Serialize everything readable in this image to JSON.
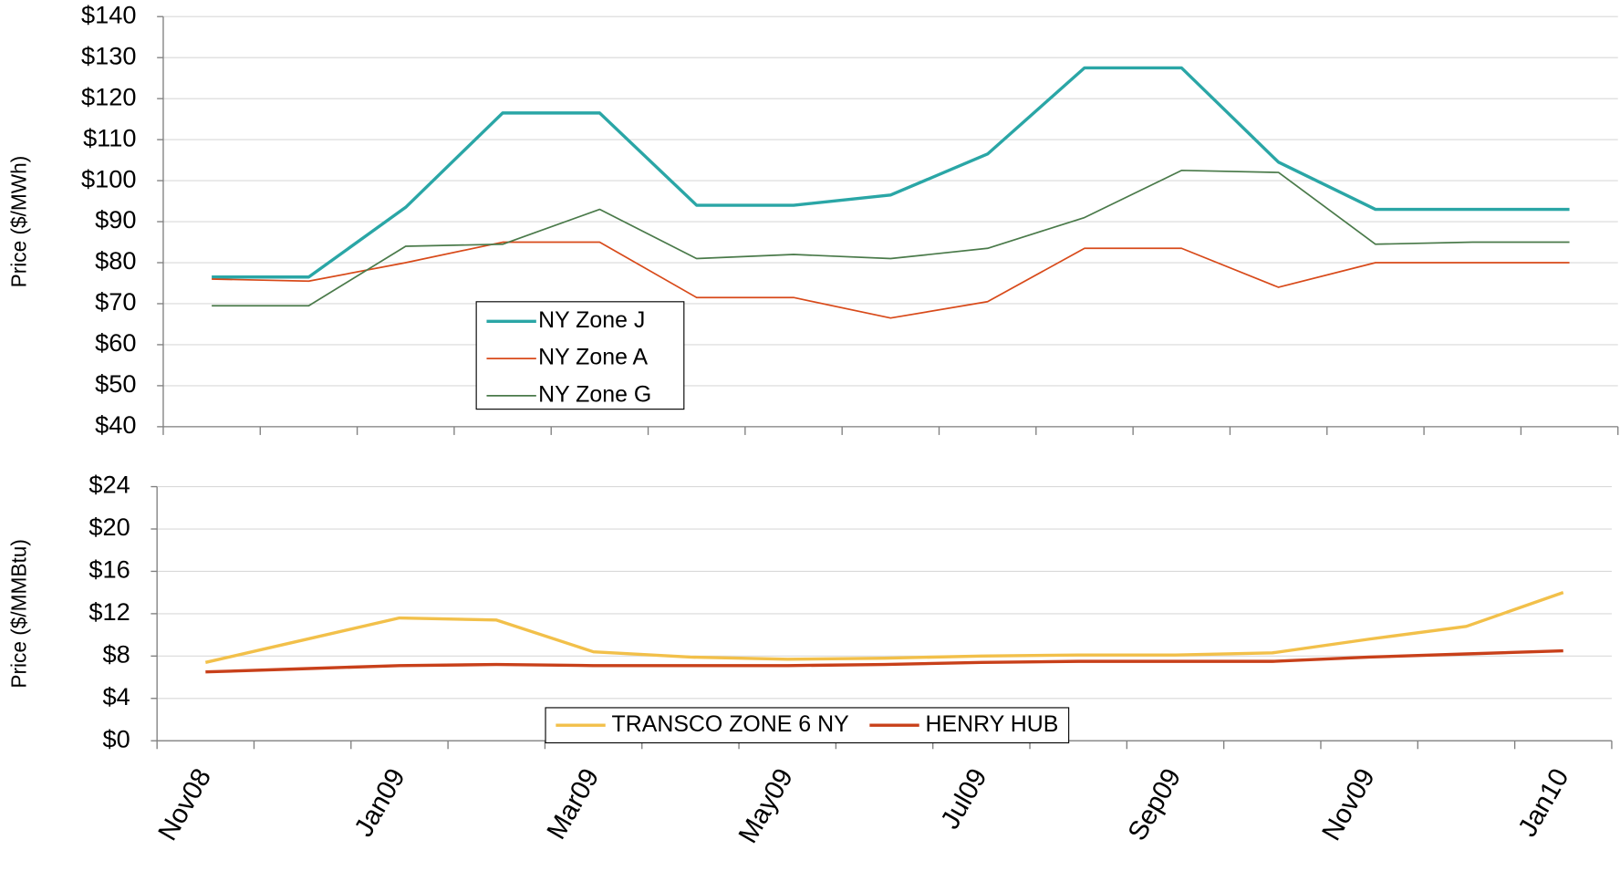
{
  "chart_data": [
    {
      "type": "line",
      "ylabel": "Price ($/MWh)",
      "categories": [
        null,
        null,
        null,
        null,
        null,
        null,
        null,
        null,
        null,
        null,
        null,
        null,
        null,
        null,
        null
      ],
      "series": [
        {
          "name": "NY Zone J",
          "color": "#2aa6a6",
          "linewidth": 3,
          "values": [
            76.5,
            76.5,
            93.5,
            116.5,
            116.5,
            94,
            94,
            96.5,
            106.5,
            127.5,
            127.5,
            104.5,
            93,
            93,
            93
          ]
        },
        {
          "name": "NY Zone A",
          "color": "#d84a1a",
          "linewidth": 1.5,
          "values": [
            76,
            75.5,
            80,
            85,
            85,
            71.5,
            71.5,
            66.5,
            70.5,
            83.5,
            83.5,
            74,
            80,
            80,
            80
          ]
        },
        {
          "name": "NY Zone G",
          "color": "#4a7a4a",
          "linewidth": 1.5,
          "values": [
            69.5,
            69.5,
            84,
            84.5,
            93,
            81,
            82,
            81,
            83.5,
            91,
            102.5,
            102,
            84.5,
            85,
            85
          ]
        }
      ],
      "ylim": [
        40,
        140
      ],
      "yticks": [
        {
          "value": 40,
          "label": "$40"
        },
        {
          "value": 50,
          "label": "$50"
        },
        {
          "value": 60,
          "label": "$60"
        },
        {
          "value": 70,
          "label": "$70"
        },
        {
          "value": 80,
          "label": "$80"
        },
        {
          "value": 90,
          "label": "$90"
        },
        {
          "value": 100,
          "label": "$100"
        },
        {
          "value": 110,
          "label": "$110"
        },
        {
          "value": 120,
          "label": "$120"
        },
        {
          "value": 130,
          "label": "$130"
        },
        {
          "value": 140,
          "label": "$140"
        }
      ],
      "grid": true,
      "legend": "center left"
    },
    {
      "type": "line",
      "ylabel": "Price ($/MMBtu)",
      "categories": [
        "Nov08",
        null,
        "Jan09",
        null,
        "Mar09",
        null,
        "May09",
        null,
        "Jul09",
        null,
        "Sep09",
        null,
        "Nov09",
        null,
        "Jan10"
      ],
      "series": [
        {
          "name": "TRANSCO ZONE 6 NY",
          "color": "#f2c04a",
          "linewidth": 3,
          "values": [
            7.4,
            9.5,
            11.6,
            11.4,
            8.4,
            7.9,
            7.7,
            7.8,
            8.0,
            8.1,
            8.1,
            8.3,
            9.6,
            10.8,
            14.0
          ]
        },
        {
          "name": "HENRY HUB",
          "color": "#c8401a",
          "linewidth": 3,
          "values": [
            6.5,
            6.8,
            7.1,
            7.2,
            7.1,
            7.1,
            7.1,
            7.2,
            7.4,
            7.5,
            7.5,
            7.5,
            7.9,
            8.2,
            8.5
          ]
        }
      ],
      "ylim": [
        0,
        24
      ],
      "yticks": [
        {
          "value": 0,
          "label": "$0"
        },
        {
          "value": 4,
          "label": "$4"
        },
        {
          "value": 8,
          "label": "$8"
        },
        {
          "value": 12,
          "label": "$12"
        },
        {
          "value": 16,
          "label": "$16"
        },
        {
          "value": 20,
          "label": "$20"
        },
        {
          "value": 24,
          "label": "$24"
        }
      ],
      "grid": true,
      "legend": "lower center"
    }
  ]
}
